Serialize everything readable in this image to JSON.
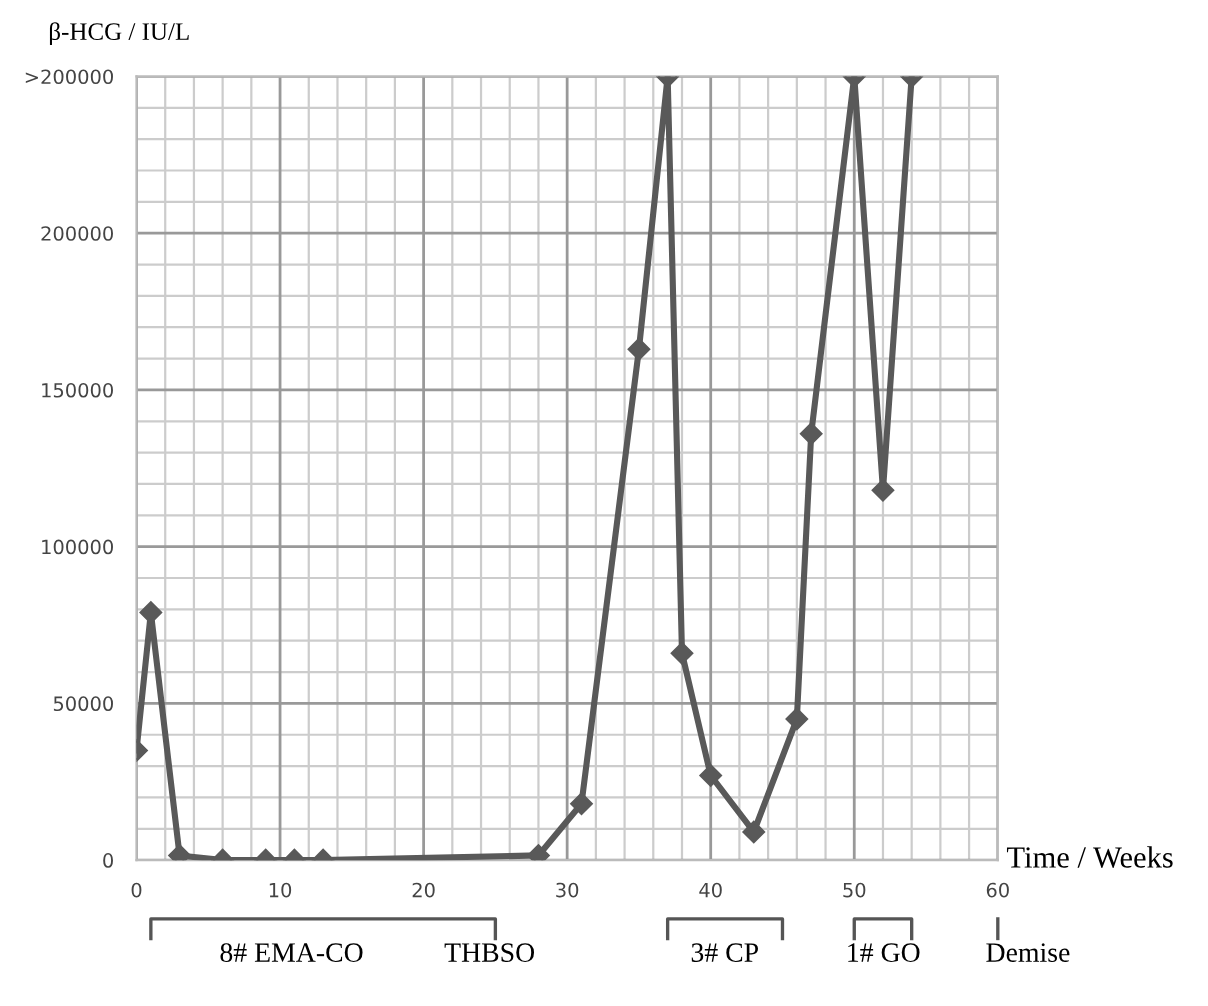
{
  "chart_data": {
    "type": "line",
    "ylabel": "β-HCG / IU/L",
    "xlabel": "Time / Weeks",
    "x": [
      0,
      1,
      3,
      6,
      9,
      11,
      13,
      28,
      31,
      35,
      37,
      38,
      40,
      43,
      46,
      47,
      50,
      52,
      54
    ],
    "series": [
      {
        "color": "#595959",
        "values": [
          35000,
          79000,
          1500,
          0,
          0,
          0,
          0,
          1500,
          18000,
          163000,
          250000,
          66000,
          27000,
          9000,
          45000,
          136000,
          250000,
          118000,
          250000
        ]
      }
    ],
    "xlim": [
      0,
      60
    ],
    "xticks": [
      0,
      10,
      20,
      30,
      40,
      50,
      60
    ],
    "ylim": [
      0,
      250000
    ],
    "yticks": [
      0,
      50000,
      100000,
      150000,
      200000,
      {
        "value": 250000,
        "label": ">200000"
      }
    ],
    "grid": true,
    "marker": "diamond",
    "line_style": "solid",
    "legend": false,
    "annotations": [
      "8# EMA-CO",
      "THBSO",
      "3# CP",
      "1# GO",
      "Demise"
    ]
  }
}
